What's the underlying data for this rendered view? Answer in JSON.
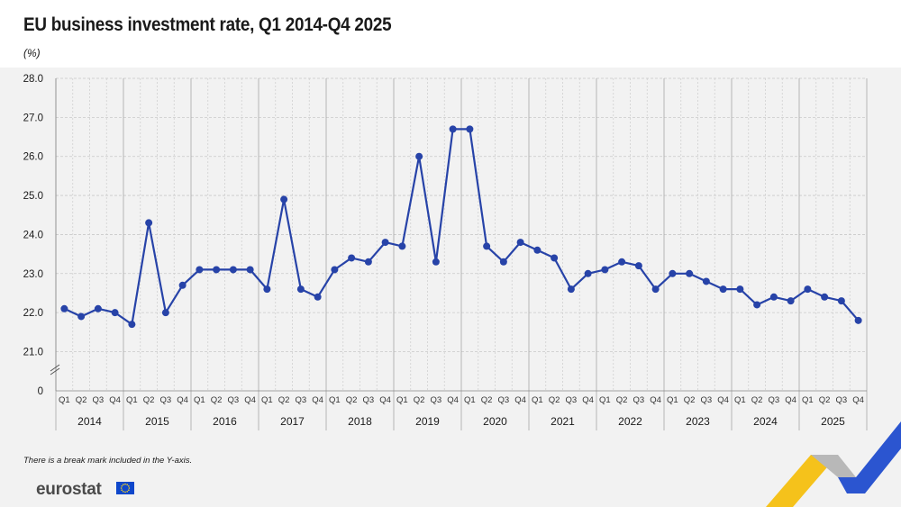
{
  "header": {
    "title": "EU business investment rate, Q1 2014-Q4 2025",
    "unit": "(%)"
  },
  "footnote": "There is a break mark included in the Y-axis.",
  "brand": {
    "logo_text": "eurostat"
  },
  "colors": {
    "line": "#2743a8",
    "grid": "#c9c9c9",
    "background": "#f2f2f2"
  },
  "chart_data": {
    "type": "line",
    "title": "EU business investment rate, Q1 2014-Q4 2025",
    "ylabel": "(%)",
    "y_break": true,
    "yticks": [
      "0",
      "21.0",
      "22.0",
      "23.0",
      "24.0",
      "25.0",
      "26.0",
      "27.0",
      "28.0"
    ],
    "ylim": [
      21,
      28
    ],
    "grid": true,
    "quarters": [
      "Q1",
      "Q2",
      "Q3",
      "Q4"
    ],
    "years": [
      "2014",
      "2015",
      "2016",
      "2017",
      "2018",
      "2019",
      "2020",
      "2021",
      "2022",
      "2023",
      "2024",
      "2025"
    ],
    "series": [
      {
        "values": [
          22.1,
          21.9,
          22.1,
          22.0,
          21.7,
          24.3,
          22.0,
          22.7,
          23.1,
          23.1,
          23.1,
          23.1,
          22.6,
          24.9,
          22.6,
          22.4,
          23.1,
          23.4,
          23.3,
          23.8,
          23.7,
          26.0,
          23.3,
          26.7,
          26.7,
          23.7,
          23.3,
          23.8,
          23.6,
          23.4,
          22.6,
          23.0,
          23.1,
          23.3,
          23.2,
          22.6,
          23.0,
          23.0,
          22.8,
          22.6,
          22.6,
          22.2,
          22.4,
          22.3,
          22.6,
          22.4,
          22.3,
          21.8
        ]
      }
    ]
  }
}
